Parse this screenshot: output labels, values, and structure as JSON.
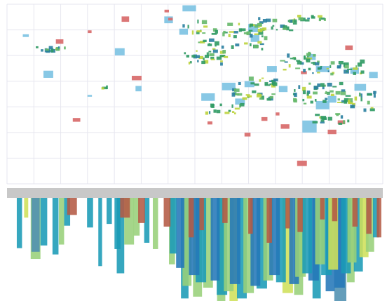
{
  "chart_data": [
    {
      "type": "scatter",
      "panel": "top",
      "grid": true,
      "xlim": [
        0,
        100
      ],
      "ylim": [
        0,
        100
      ],
      "colors": {
        "blue": "#7ec3e3",
        "red": "#d86a6a",
        "green": "#2f9a63",
        "lime": "#bcd33c",
        "teal": "#2a7fa0",
        "grid": "#e6e6ef"
      },
      "series": [
        {
          "kind": "box",
          "color": "blue",
          "points": [
            {
              "x": 5,
              "y": 82.5,
              "w": 1.6,
              "h": 1.5
            },
            {
              "x": 11,
              "y": 61,
              "w": 2.6,
              "h": 4
            },
            {
              "x": 22,
              "y": 49,
              "w": 1.2,
              "h": 1
            },
            {
              "x": 30,
              "y": 73.5,
              "w": 2.6,
              "h": 4
            },
            {
              "x": 35,
              "y": 53,
              "w": 1.6,
              "h": 3
            },
            {
              "x": 43,
              "y": 91.3,
              "w": 2.3,
              "h": 3.8
            },
            {
              "x": 47,
              "y": 84.7,
              "w": 2.3,
              "h": 3.4
            },
            {
              "x": 48.5,
              "y": 97.7,
              "w": 3.6,
              "h": 3.4
            },
            {
              "x": 53.5,
              "y": 48.3,
              "w": 3.6,
              "h": 4.2
            },
            {
              "x": 59,
              "y": 54.2,
              "w": 3.6,
              "h": 4.2
            },
            {
              "x": 62,
              "y": 45.8,
              "w": 2.6,
              "h": 3.4
            },
            {
              "x": 64.5,
              "y": 55.5,
              "w": 2.6,
              "h": 3.4
            },
            {
              "x": 70.5,
              "y": 63.9,
              "w": 2.6,
              "h": 3.4
            },
            {
              "x": 66,
              "y": 80.9,
              "w": 2.3,
              "h": 3.8
            },
            {
              "x": 65.5,
              "y": 86.7,
              "w": 2.6,
              "h": 4.6
            },
            {
              "x": 73.5,
              "y": 52.8,
              "w": 2.3,
              "h": 3.4
            },
            {
              "x": 81,
              "y": 70.6,
              "w": 2.3,
              "h": 3.4
            },
            {
              "x": 80.5,
              "y": 31.9,
              "w": 3.8,
              "h": 6.7
            },
            {
              "x": 84,
              "y": 63.9,
              "w": 3.6,
              "h": 3.4
            },
            {
              "x": 84,
              "y": 43.8,
              "w": 3.6,
              "h": 4.6
            },
            {
              "x": 86.5,
              "y": 47.1,
              "w": 2.3,
              "h": 3.8
            },
            {
              "x": 94,
              "y": 53.7,
              "w": 3.1,
              "h": 3.8
            },
            {
              "x": 92.5,
              "y": 63,
              "w": 2.3,
              "h": 3.4
            },
            {
              "x": 97.5,
              "y": 60.6,
              "w": 2.3,
              "h": 3.4
            }
          ]
        },
        {
          "kind": "box",
          "color": "red",
          "points": [
            {
              "x": 14,
              "y": 79.2,
              "w": 2,
              "h": 2.5
            },
            {
              "x": 22,
              "y": 84.7,
              "w": 1,
              "h": 1.5
            },
            {
              "x": 31.5,
              "y": 91.7,
              "w": 2,
              "h": 3
            },
            {
              "x": 34.5,
              "y": 58.9,
              "w": 2.6,
              "h": 2.5
            },
            {
              "x": 18.5,
              "y": 35.6,
              "w": 2,
              "h": 2.1
            },
            {
              "x": 42.5,
              "y": 96.2,
              "w": 1.2,
              "h": 1.5
            },
            {
              "x": 43.5,
              "y": 91.7,
              "w": 1.2,
              "h": 1.5
            },
            {
              "x": 54,
              "y": 33.9,
              "w": 1.3,
              "h": 1.7
            },
            {
              "x": 64,
              "y": 27.4,
              "w": 1.6,
              "h": 2.1
            },
            {
              "x": 68.5,
              "y": 36.1,
              "w": 1.6,
              "h": 2.1
            },
            {
              "x": 72,
              "y": 38.9,
              "w": 1,
              "h": 1.7
            },
            {
              "x": 74,
              "y": 31.9,
              "w": 2.3,
              "h": 2.5
            },
            {
              "x": 86.5,
              "y": 28.9,
              "w": 2.3,
              "h": 2.5
            },
            {
              "x": 89,
              "y": 34.3,
              "w": 2,
              "h": 2.1
            },
            {
              "x": 91,
              "y": 75.8,
              "w": 2,
              "h": 2.5
            },
            {
              "x": 78.5,
              "y": 11.4,
              "w": 2.6,
              "h": 3
            },
            {
              "x": 79,
              "y": 61.9,
              "w": 1.6,
              "h": 1.7
            }
          ]
        },
        {
          "kind": "cluster",
          "groups": [
            {
              "x": 12,
              "y": 74.6,
              "w": 8,
              "h": 3.4,
              "n": 14
            },
            {
              "x": 26,
              "y": 53,
              "w": 2,
              "h": 2,
              "n": 3
            },
            {
              "x": 50,
              "y": 87,
              "w": 6,
              "h": 8,
              "n": 10
            },
            {
              "x": 53,
              "y": 78,
              "w": 4,
              "h": 4,
              "n": 6
            },
            {
              "x": 62,
              "y": 82,
              "w": 14,
              "h": 14,
              "n": 40
            },
            {
              "x": 72,
              "y": 88,
              "w": 10,
              "h": 8,
              "n": 24
            },
            {
              "x": 53,
              "y": 70,
              "w": 12,
              "h": 8,
              "n": 28
            },
            {
              "x": 78,
              "y": 68,
              "w": 10,
              "h": 10,
              "n": 26
            },
            {
              "x": 88,
              "y": 65,
              "w": 14,
              "h": 8,
              "n": 30
            },
            {
              "x": 66,
              "y": 53,
              "w": 12,
              "h": 12,
              "n": 36
            },
            {
              "x": 84,
              "y": 50,
              "w": 16,
              "h": 12,
              "n": 40
            },
            {
              "x": 93,
              "y": 46,
              "w": 10,
              "h": 10,
              "n": 24
            },
            {
              "x": 58,
              "y": 42,
              "w": 10,
              "h": 6,
              "n": 16
            },
            {
              "x": 86,
              "y": 36,
              "w": 10,
              "h": 6,
              "n": 14
            },
            {
              "x": 80,
              "y": 92,
              "w": 10,
              "h": 4,
              "n": 12
            }
          ]
        }
      ]
    },
    {
      "type": "bar",
      "panel": "bottom",
      "orientation": "down",
      "ylim": [
        0,
        100
      ],
      "colors": {
        "teal": "#1a9bb6",
        "blue": "#2478b8",
        "green": "#98d07a",
        "lime": "#cfe05a",
        "red": "#b45a44",
        "steel": "#4f8fb0"
      },
      "bars": [
        {
          "x": 3.3,
          "w": 1.4,
          "c": "teal",
          "v": 56
        },
        {
          "x": 5.1,
          "w": 1.1,
          "c": "lime",
          "v": 22
        },
        {
          "x": 7.6,
          "w": 2.6,
          "c": "green",
          "v": 68
        },
        {
          "x": 7.6,
          "w": 2.2,
          "c": "steel",
          "v": 60
        },
        {
          "x": 9.8,
          "w": 1.8,
          "c": "teal",
          "v": 53
        },
        {
          "x": 12.9,
          "w": 1.6,
          "c": "teal",
          "v": 63
        },
        {
          "x": 14.5,
          "w": 1.4,
          "c": "green",
          "v": 52
        },
        {
          "x": 16,
          "w": 1.6,
          "c": "teal",
          "v": 31
        },
        {
          "x": 17.3,
          "w": 2.6,
          "c": "red",
          "v": 19
        },
        {
          "x": 22.1,
          "w": 1.6,
          "c": "teal",
          "v": 33
        },
        {
          "x": 24.8,
          "w": 1,
          "c": "teal",
          "v": 76
        },
        {
          "x": 27.2,
          "w": 1.4,
          "c": "teal",
          "v": 29
        },
        {
          "x": 29.4,
          "w": 1.6,
          "c": "teal",
          "v": 57
        },
        {
          "x": 30.2,
          "w": 2,
          "c": "teal",
          "v": 84
        },
        {
          "x": 32.5,
          "w": 2.6,
          "c": "green",
          "v": 52
        },
        {
          "x": 31.4,
          "w": 2.6,
          "c": "red",
          "v": 22
        },
        {
          "x": 34.5,
          "w": 1.6,
          "c": "green",
          "v": 42
        },
        {
          "x": 35.8,
          "w": 1.8,
          "c": "red",
          "v": 28
        },
        {
          "x": 37.2,
          "w": 1.4,
          "c": "teal",
          "v": 50
        },
        {
          "x": 39.5,
          "w": 1.4,
          "c": "green",
          "v": 57
        },
        {
          "x": 42.6,
          "w": 1.8,
          "c": "red",
          "v": 32
        },
        {
          "x": 44.2,
          "w": 1.8,
          "c": "teal",
          "v": 62
        },
        {
          "x": 46.1,
          "w": 2.2,
          "c": "blue",
          "v": 78
        },
        {
          "x": 47.9,
          "w": 2.4,
          "c": "green",
          "v": 98
        },
        {
          "x": 49.8,
          "w": 2.8,
          "c": "blue",
          "v": 86
        },
        {
          "x": 51.6,
          "w": 2.8,
          "c": "teal",
          "v": 94
        },
        {
          "x": 53.5,
          "w": 2.6,
          "c": "green",
          "v": 100
        },
        {
          "x": 55.4,
          "w": 2.4,
          "c": "blue",
          "v": 92
        },
        {
          "x": 57.2,
          "w": 2.8,
          "c": "teal",
          "v": 108
        },
        {
          "x": 59,
          "w": 2.6,
          "c": "green",
          "v": 104
        },
        {
          "x": 60.7,
          "w": 2.8,
          "c": "blue",
          "v": 96
        },
        {
          "x": 62.5,
          "w": 2.6,
          "c": "teal",
          "v": 112
        },
        {
          "x": 64.3,
          "w": 2.8,
          "c": "green",
          "v": 106
        },
        {
          "x": 66.1,
          "w": 2.6,
          "c": "blue",
          "v": 98
        },
        {
          "x": 67.8,
          "w": 2.8,
          "c": "teal",
          "v": 101
        },
        {
          "x": 69.5,
          "w": 2.6,
          "c": "green",
          "v": 92
        },
        {
          "x": 71.2,
          "w": 2.8,
          "c": "blue",
          "v": 86
        },
        {
          "x": 72.9,
          "w": 2.6,
          "c": "teal",
          "v": 94
        },
        {
          "x": 74.7,
          "w": 2.8,
          "c": "lime",
          "v": 106
        },
        {
          "x": 76.4,
          "w": 2.6,
          "c": "blue",
          "v": 96
        },
        {
          "x": 78.1,
          "w": 2.8,
          "c": "green",
          "v": 88
        },
        {
          "x": 79.9,
          "w": 2.6,
          "c": "teal",
          "v": 84
        },
        {
          "x": 81.6,
          "w": 2.8,
          "c": "blue",
          "v": 92
        },
        {
          "x": 83.3,
          "w": 2.6,
          "c": "green",
          "v": 74
        },
        {
          "x": 85,
          "w": 2.8,
          "c": "teal",
          "v": 86
        },
        {
          "x": 86.8,
          "w": 2.6,
          "c": "lime",
          "v": 80
        },
        {
          "x": 88.5,
          "w": 2.8,
          "c": "blue",
          "v": 100
        },
        {
          "x": 90.2,
          "w": 2.6,
          "c": "teal",
          "v": 84
        },
        {
          "x": 91.8,
          "w": 2.4,
          "c": "green",
          "v": 72
        },
        {
          "x": 93.5,
          "w": 2.4,
          "c": "teal",
          "v": 82
        },
        {
          "x": 95,
          "w": 2.4,
          "c": "lime",
          "v": 66
        },
        {
          "x": 96.6,
          "w": 2.2,
          "c": "green",
          "v": 60
        },
        {
          "x": 98.2,
          "w": 1.6,
          "c": "teal",
          "v": 44
        },
        {
          "x": 49,
          "w": 1.4,
          "c": "red",
          "v": 44
        },
        {
          "x": 51.8,
          "w": 1.2,
          "c": "red",
          "v": 36
        },
        {
          "x": 58,
          "w": 1.4,
          "c": "red",
          "v": 28
        },
        {
          "x": 64.8,
          "w": 1.2,
          "c": "red",
          "v": 40
        },
        {
          "x": 69.8,
          "w": 1.4,
          "c": "red",
          "v": 50
        },
        {
          "x": 74.7,
          "w": 1.2,
          "c": "red",
          "v": 34
        },
        {
          "x": 78,
          "w": 1.4,
          "c": "red",
          "v": 38
        },
        {
          "x": 83.9,
          "w": 1.2,
          "c": "red",
          "v": 24
        },
        {
          "x": 87.2,
          "w": 1.4,
          "c": "red",
          "v": 26
        },
        {
          "x": 92.6,
          "w": 1.4,
          "c": "red",
          "v": 32
        },
        {
          "x": 96.3,
          "w": 1.4,
          "c": "red",
          "v": 40
        },
        {
          "x": 99,
          "w": 1.2,
          "c": "red",
          "v": 44
        },
        {
          "x": 86,
          "w": 2.4,
          "c": "blue",
          "v": 104
        },
        {
          "x": 57,
          "w": 2.2,
          "c": "green",
          "v": 120
        },
        {
          "x": 47.3,
          "w": 2,
          "c": "teal",
          "v": 112
        },
        {
          "x": 50.7,
          "w": 2.4,
          "c": "green",
          "v": 110
        },
        {
          "x": 43.9,
          "w": 1.6,
          "c": "green",
          "v": 74
        },
        {
          "x": 60.3,
          "w": 2.2,
          "c": "lime",
          "v": 116
        },
        {
          "x": 77.6,
          "w": 2.4,
          "c": "green",
          "v": 108
        },
        {
          "x": 82.4,
          "w": 2.2,
          "c": "teal",
          "v": 112
        },
        {
          "x": 88.7,
          "w": 3.2,
          "c": "steel",
          "v": 118
        },
        {
          "x": 91.5,
          "w": 2,
          "c": "green",
          "v": 94
        }
      ]
    }
  ]
}
